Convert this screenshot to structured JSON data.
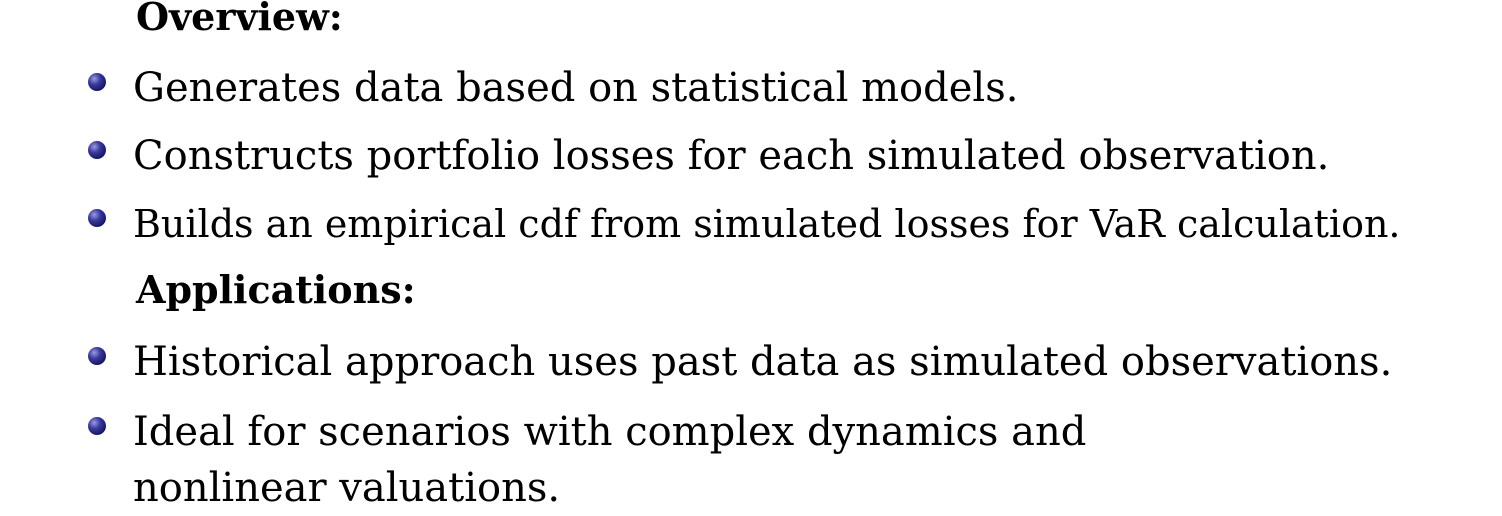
{
  "sections": [
    {
      "heading": "Overview:",
      "bullets": [
        "Generates data based on statistical models.",
        "Constructs portfolio losses for each simulated observation.",
        "Builds an empirical cdf from simulated losses for VaR calculation."
      ]
    },
    {
      "heading": "Applications:",
      "bullets": [
        "Historical approach uses past data as simulated observations.",
        "Ideal for scenarios with complex dynamics and nonlinear valuations."
      ]
    }
  ],
  "colors": {
    "bullet": "#1a1a6e",
    "text": "#000000",
    "background": "#ffffff"
  }
}
